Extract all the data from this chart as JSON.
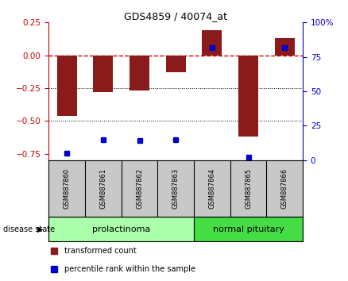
{
  "title": "GDS4859 / 40074_at",
  "samples": [
    "GSM887860",
    "GSM887861",
    "GSM887862",
    "GSM887863",
    "GSM887864",
    "GSM887865",
    "GSM887866"
  ],
  "transformed_count": [
    -0.46,
    -0.28,
    -0.27,
    -0.13,
    0.19,
    -0.62,
    0.13
  ],
  "percentile_rank": [
    5,
    15,
    14,
    15,
    82,
    2,
    82
  ],
  "ylim_left": [
    -0.8,
    0.25
  ],
  "ylim_right": [
    0,
    100
  ],
  "yticks_left": [
    -0.75,
    -0.5,
    -0.25,
    0,
    0.25
  ],
  "yticks_right": [
    0,
    25,
    50,
    75,
    100
  ],
  "bar_color": "#8B1A1A",
  "dot_color": "#0000CC",
  "zero_line_color": "#CC0000",
  "dotted_line_color": "#000000",
  "group1_label": "prolactinoma",
  "group2_label": "normal pituitary",
  "group1_indices": [
    0,
    1,
    2,
    3
  ],
  "group2_indices": [
    4,
    5,
    6
  ],
  "disease_state_label": "disease state",
  "legend1_label": "transformed count",
  "legend2_label": "percentile rank within the sample",
  "group1_color": "#AAFFAA",
  "group2_color": "#44DD44",
  "sample_box_color": "#C8C8C8",
  "fig_bg_color": "#FFFFFF"
}
